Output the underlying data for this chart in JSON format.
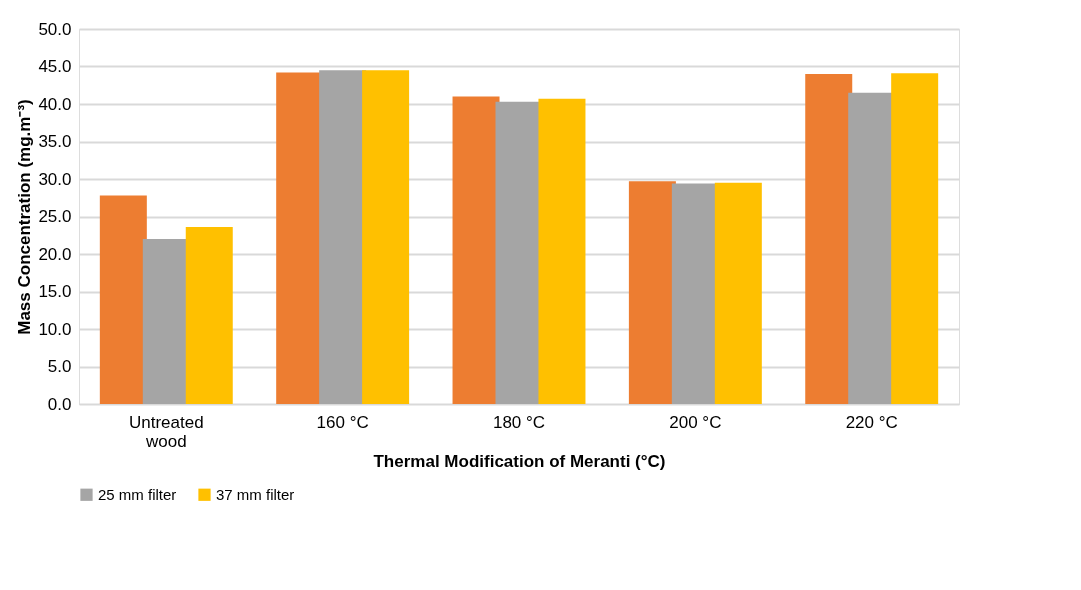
{
  "chart_data": {
    "type": "bar",
    "xlabel": "Thermal Modification of Meranti  (°C)",
    "ylabel": "Mass Concentration (mg.m⁻³)",
    "categories": [
      "Untreated wood",
      "160 °C",
      "180 °C",
      "200 °C",
      "220 °C"
    ],
    "series": [
      {
        "color": "#ed7d31",
        "values": [
          27.8,
          44.2,
          41.0,
          29.7,
          44.0
        ]
      },
      {
        "name": "25 mm filter",
        "color": "#a5a5a5",
        "values": [
          22.0,
          44.5,
          40.3,
          29.4,
          41.5
        ]
      },
      {
        "name": "37 mm filter",
        "color": "#ffc000",
        "values": [
          23.6,
          44.5,
          40.7,
          29.5,
          44.1
        ]
      }
    ],
    "ylim": [
      0,
      50
    ],
    "yticks": [
      {
        "value": 0,
        "label": "0.0"
      },
      {
        "value": 5,
        "label": "5.0"
      },
      {
        "value": 10,
        "label": "10.0"
      },
      {
        "value": 15,
        "label": "15.0"
      },
      {
        "value": 20,
        "label": "20.0"
      },
      {
        "value": 25,
        "label": "25.0"
      },
      {
        "value": 30,
        "label": "30.0"
      },
      {
        "value": 35,
        "label": "35.0"
      },
      {
        "value": 40,
        "label": "40.0"
      },
      {
        "value": 45,
        "label": "45.0"
      },
      {
        "value": 50,
        "label": "50.0"
      }
    ],
    "grid": "y",
    "legend": "bottom"
  }
}
